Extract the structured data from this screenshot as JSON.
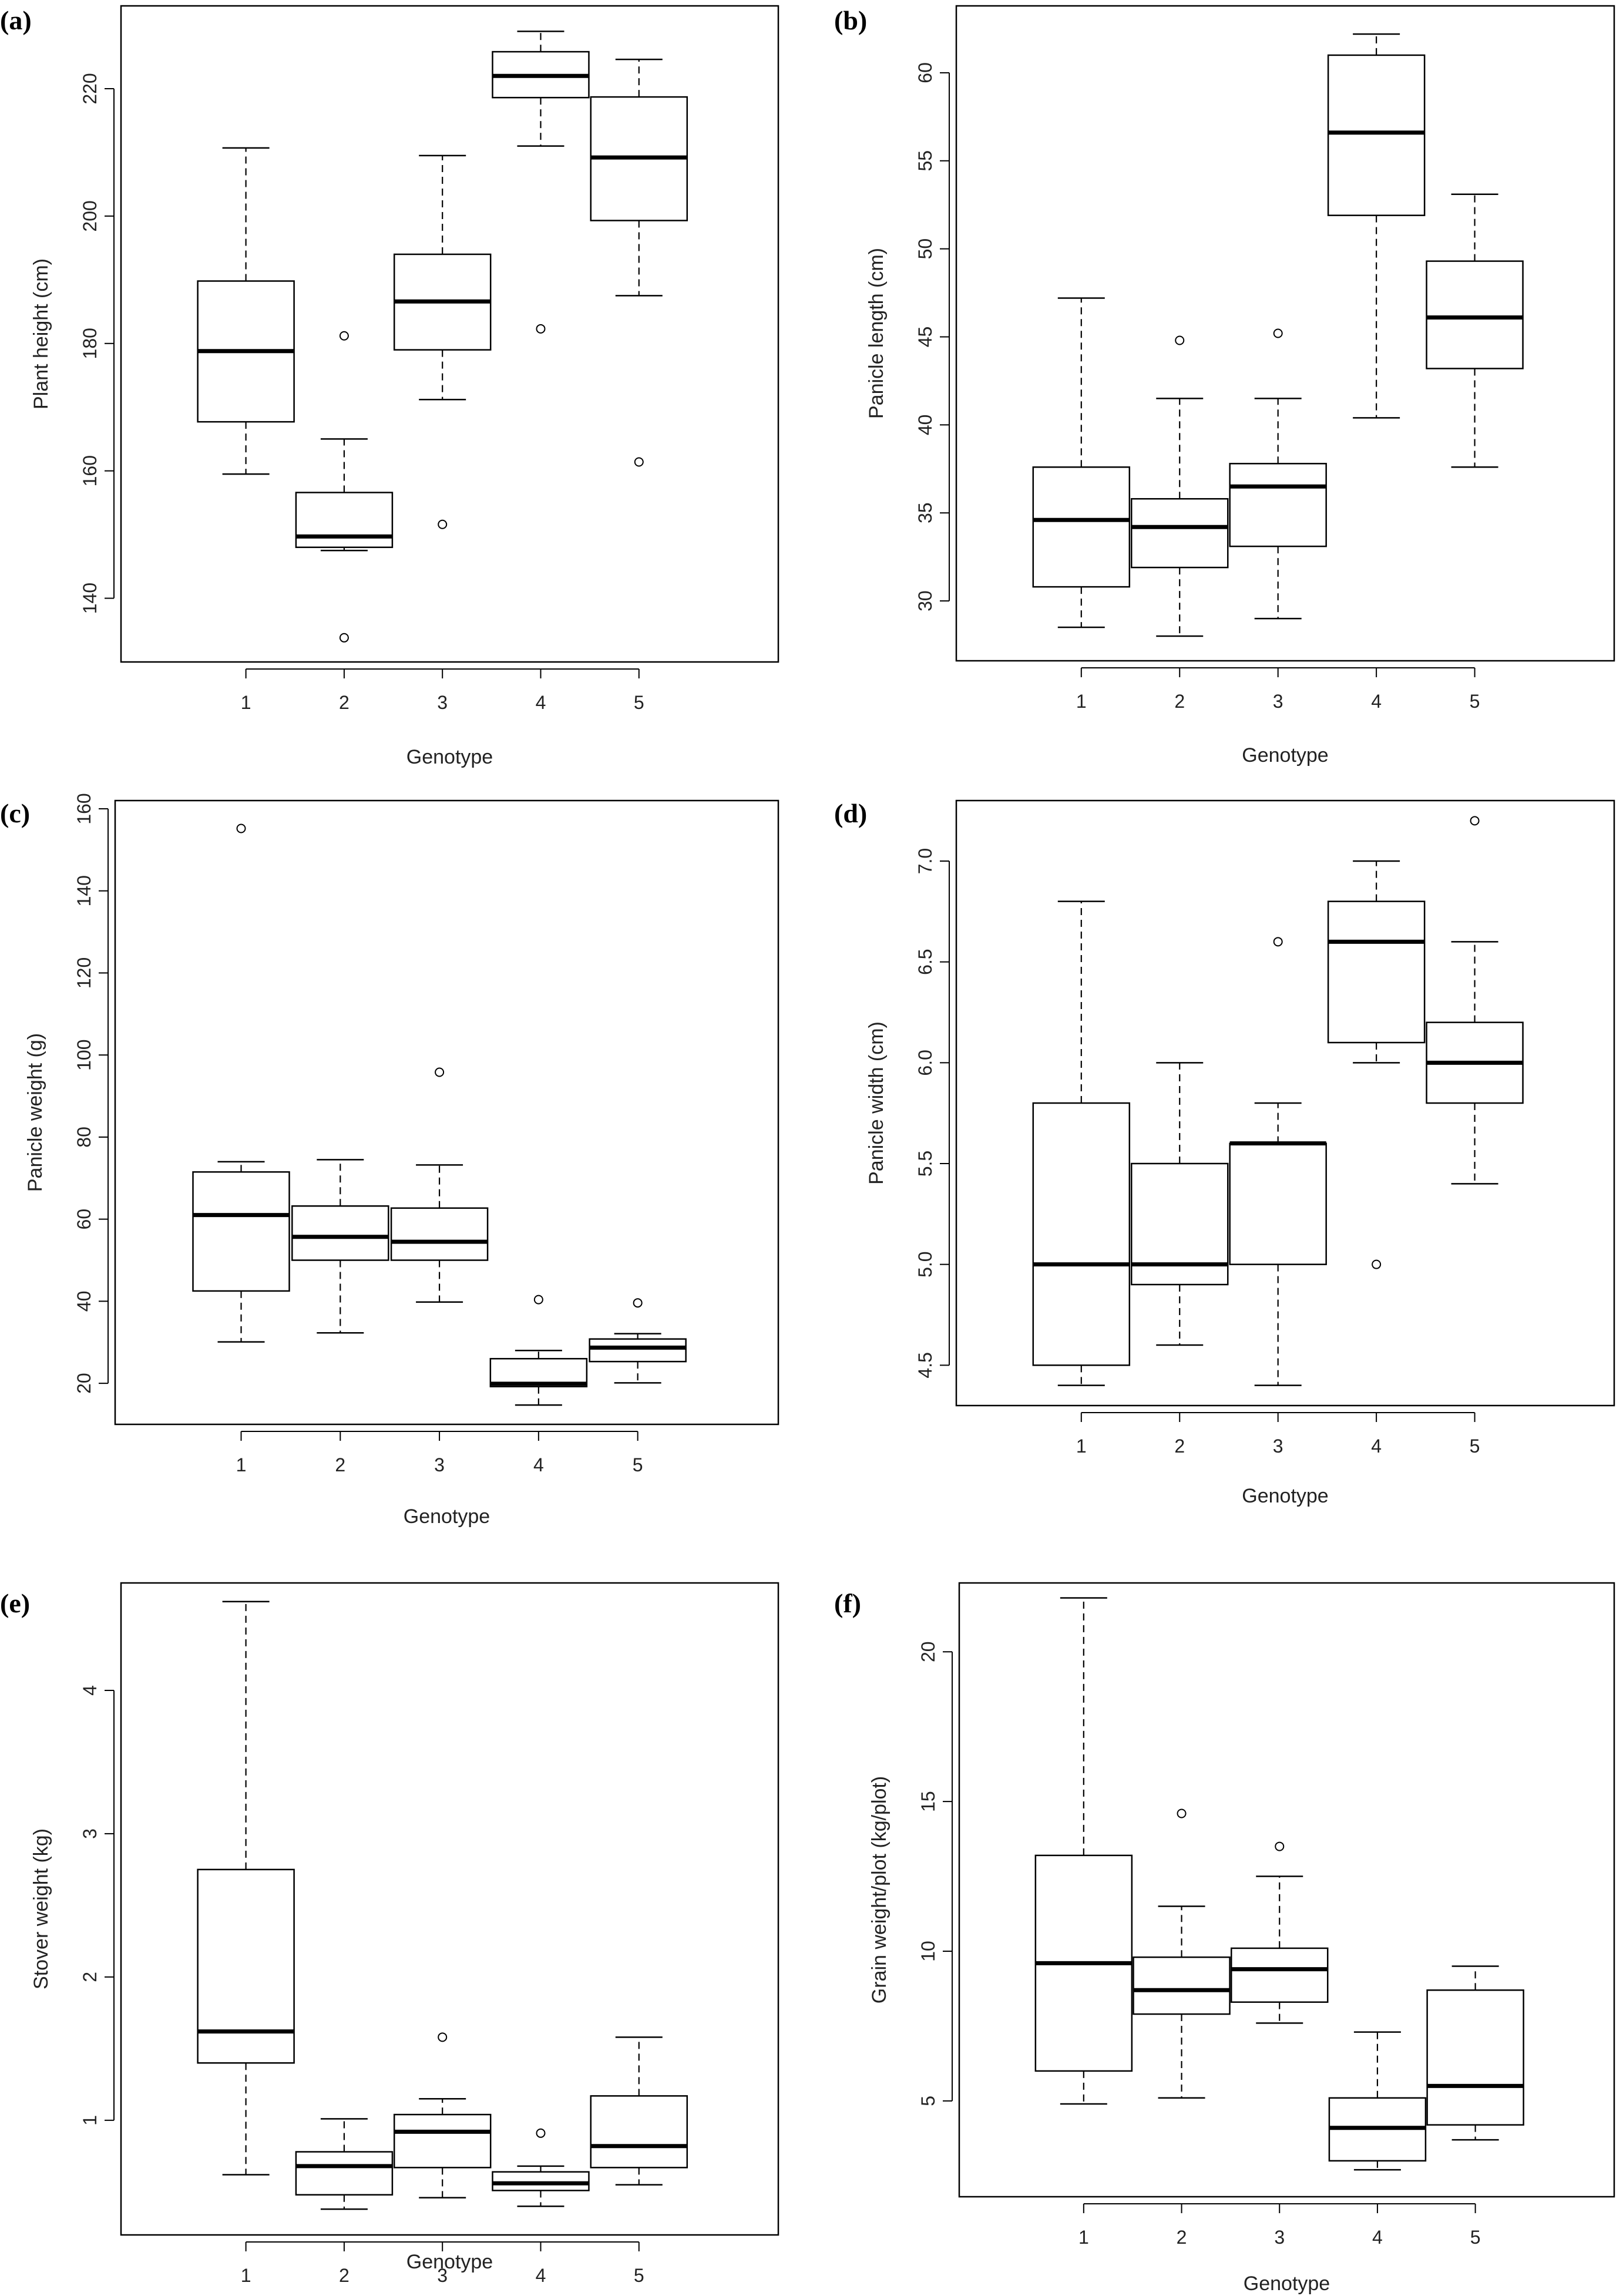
{
  "chart_data": [
    {
      "type": "box",
      "panel_label": "(a)",
      "xlabel": "Genotype",
      "ylabel": "Plant height (cm)",
      "categories": [
        "1",
        "2",
        "3",
        "4",
        "5"
      ],
      "yticks": [
        140,
        160,
        180,
        200,
        220
      ],
      "ylim": [
        130,
        233
      ],
      "boxes": [
        {
          "whisker_low": 159.5,
          "q1": 167.7,
          "median": 178.8,
          "q3": 189.8,
          "whisker_high": 210.7,
          "outliers": []
        },
        {
          "whisker_low": 147.5,
          "q1": 148.0,
          "median": 149.7,
          "q3": 156.6,
          "whisker_high": 165.0,
          "outliers": [
            181.2,
            133.8
          ]
        },
        {
          "whisker_low": 171.2,
          "q1": 179.0,
          "median": 186.6,
          "q3": 194.0,
          "whisker_high": 209.5,
          "outliers": [
            151.6
          ]
        },
        {
          "whisker_low": 211.0,
          "q1": 218.6,
          "median": 222.0,
          "q3": 225.8,
          "whisker_high": 229.0,
          "outliers": [
            182.3
          ]
        },
        {
          "whisker_low": 187.5,
          "q1": 199.3,
          "median": 209.2,
          "q3": 218.7,
          "whisker_high": 224.6,
          "outliers": [
            161.4
          ]
        }
      ],
      "grid": false
    },
    {
      "type": "box",
      "panel_label": "(b)",
      "xlabel": "Genotype",
      "ylabel": "Panicle length (cm)",
      "categories": [
        "1",
        "2",
        "3",
        "4",
        "5"
      ],
      "yticks": [
        30,
        35,
        40,
        45,
        50,
        55,
        60
      ],
      "ylim": [
        26.6,
        63.8
      ],
      "boxes": [
        {
          "whisker_low": 28.5,
          "q1": 30.8,
          "median": 34.6,
          "q3": 37.6,
          "whisker_high": 47.2,
          "outliers": []
        },
        {
          "whisker_low": 28.0,
          "q1": 31.9,
          "median": 34.2,
          "q3": 35.8,
          "whisker_high": 41.5,
          "outliers": [
            44.8
          ]
        },
        {
          "whisker_low": 29.0,
          "q1": 33.1,
          "median": 36.5,
          "q3": 37.8,
          "whisker_high": 41.5,
          "outliers": [
            45.2
          ]
        },
        {
          "whisker_low": 40.4,
          "q1": 51.9,
          "median": 56.6,
          "q3": 61.0,
          "whisker_high": 62.2,
          "outliers": []
        },
        {
          "whisker_low": 37.6,
          "q1": 43.2,
          "median": 46.1,
          "q3": 49.3,
          "whisker_high": 53.1,
          "outliers": []
        }
      ],
      "grid": false
    },
    {
      "type": "box",
      "panel_label": "(c)",
      "xlabel": "Genotype",
      "ylabel": "Panicle weight (g)",
      "categories": [
        "1",
        "2",
        "3",
        "4",
        "5"
      ],
      "yticks": [
        20,
        40,
        60,
        80,
        100,
        120,
        140,
        160
      ],
      "ylim": [
        10,
        162
      ],
      "boxes": [
        {
          "whisker_low": 30.1,
          "q1": 42.5,
          "median": 61.0,
          "q3": 71.5,
          "whisker_high": 74.0,
          "outliers": [
            155.2
          ]
        },
        {
          "whisker_low": 32.3,
          "q1": 50.0,
          "median": 55.7,
          "q3": 63.2,
          "whisker_high": 74.5,
          "outliers": []
        },
        {
          "whisker_low": 39.8,
          "q1": 50.0,
          "median": 54.5,
          "q3": 62.7,
          "whisker_high": 73.2,
          "outliers": [
            95.8
          ]
        },
        {
          "whisker_low": 14.7,
          "q1": 19.2,
          "median": 19.9,
          "q3": 26.0,
          "whisker_high": 28.0,
          "outliers": [
            40.4
          ]
        },
        {
          "whisker_low": 20.1,
          "q1": 25.3,
          "median": 28.7,
          "q3": 30.8,
          "whisker_high": 32.1,
          "outliers": [
            39.6
          ]
        }
      ],
      "grid": false
    },
    {
      "type": "box",
      "panel_label": "(d)",
      "xlabel": "Genotype",
      "ylabel": "Panicle width (cm)",
      "categories": [
        "1",
        "2",
        "3",
        "4",
        "5"
      ],
      "yticks": [
        4.5,
        5.0,
        5.5,
        6.0,
        6.5,
        7.0
      ],
      "ylim": [
        4.3,
        7.3
      ],
      "boxes": [
        {
          "whisker_low": 4.4,
          "q1": 4.5,
          "median": 5.0,
          "q3": 5.8,
          "whisker_high": 6.8,
          "outliers": []
        },
        {
          "whisker_low": 4.6,
          "q1": 4.9,
          "median": 5.0,
          "q3": 5.5,
          "whisker_high": 6.0,
          "outliers": []
        },
        {
          "whisker_low": 4.4,
          "q1": 5.0,
          "median": 5.6,
          "q3": 5.6,
          "whisker_high": 5.8,
          "outliers": [
            6.6
          ]
        },
        {
          "whisker_low": 6.0,
          "q1": 6.1,
          "median": 6.6,
          "q3": 6.8,
          "whisker_high": 7.0,
          "outliers": [
            5.0
          ]
        },
        {
          "whisker_low": 5.4,
          "q1": 5.8,
          "median": 6.0,
          "q3": 6.2,
          "whisker_high": 6.6,
          "outliers": [
            7.2
          ]
        }
      ],
      "grid": false
    },
    {
      "type": "box",
      "panel_label": "(e)",
      "xlabel": "Genotype",
      "ylabel": "Stover weight (kg)",
      "categories": [
        "1",
        "2",
        "3",
        "4",
        "5"
      ],
      "yticks": [
        1,
        2,
        3,
        4
      ],
      "ylim": [
        0.2,
        4.75
      ],
      "boxes": [
        {
          "whisker_low": 0.62,
          "q1": 1.4,
          "median": 1.62,
          "q3": 2.75,
          "whisker_high": 4.62,
          "outliers": []
        },
        {
          "whisker_low": 0.38,
          "q1": 0.48,
          "median": 0.68,
          "q3": 0.78,
          "whisker_high": 1.01,
          "outliers": []
        },
        {
          "whisker_low": 0.46,
          "q1": 0.67,
          "median": 0.92,
          "q3": 1.04,
          "whisker_high": 1.15,
          "outliers": [
            1.58
          ]
        },
        {
          "whisker_low": 0.4,
          "q1": 0.51,
          "median": 0.56,
          "q3": 0.64,
          "whisker_high": 0.68,
          "outliers": [
            0.91
          ]
        },
        {
          "whisker_low": 0.55,
          "q1": 0.67,
          "median": 0.82,
          "q3": 1.17,
          "whisker_high": 1.58,
          "outliers": []
        }
      ],
      "grid": false
    },
    {
      "type": "box",
      "panel_label": "(f)",
      "xlabel": "Genotype",
      "ylabel": "Grain weight/plot (kg/plot)",
      "categories": [
        "1",
        "2",
        "3",
        "4",
        "5"
      ],
      "yticks": [
        5,
        10,
        15,
        20
      ],
      "ylim": [
        1.8,
        22.3
      ],
      "boxes": [
        {
          "whisker_low": 4.9,
          "q1": 6.0,
          "median": 9.6,
          "q3": 13.2,
          "whisker_high": 21.8,
          "outliers": []
        },
        {
          "whisker_low": 5.1,
          "q1": 7.9,
          "median": 8.7,
          "q3": 9.8,
          "whisker_high": 11.5,
          "outliers": [
            14.6
          ]
        },
        {
          "whisker_low": 7.6,
          "q1": 8.3,
          "median": 9.4,
          "q3": 10.1,
          "whisker_high": 12.5,
          "outliers": [
            13.5
          ]
        },
        {
          "whisker_low": 2.7,
          "q1": 3.0,
          "median": 4.1,
          "q3": 5.1,
          "whisker_high": 7.3,
          "outliers": []
        },
        {
          "whisker_low": 3.7,
          "q1": 4.2,
          "median": 5.5,
          "q3": 8.7,
          "whisker_high": 9.5,
          "outliers": []
        }
      ],
      "grid": false
    }
  ]
}
